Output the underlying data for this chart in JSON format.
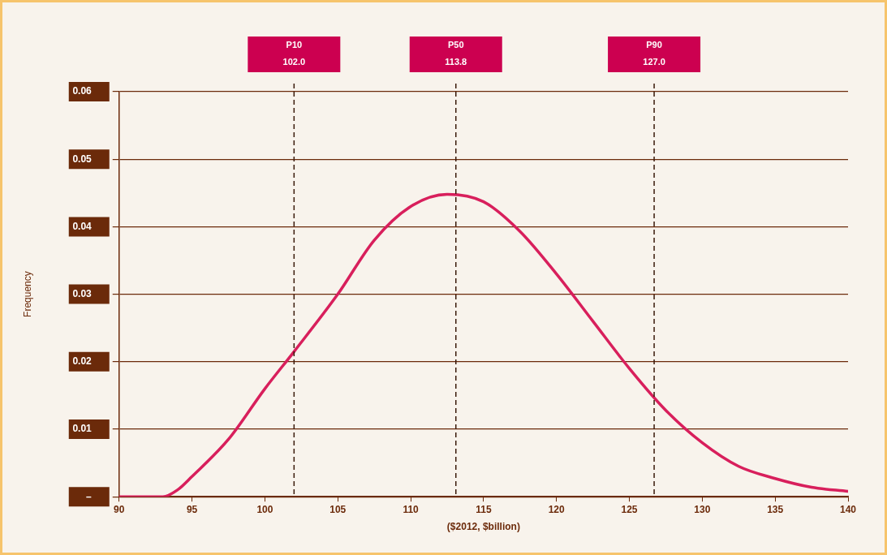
{
  "chart_data": {
    "type": "line",
    "xlabel": "($2012, $billion)",
    "ylabel": "Frequency",
    "x": [
      90,
      92,
      93,
      94,
      95,
      97.5,
      100,
      102,
      105,
      107.5,
      110,
      112.5,
      115,
      117.5,
      120,
      122.5,
      125,
      127.5,
      130,
      132.5,
      135,
      137.5,
      140
    ],
    "series": [
      {
        "color": "#d81f5c",
        "values": [
          0,
          0,
          0,
          0.001,
          0.003,
          0.0085,
          0.016,
          0.0215,
          0.03,
          0.038,
          0.043,
          0.0448,
          0.0437,
          0.0393,
          0.033,
          0.026,
          0.019,
          0.0128,
          0.008,
          0.0045,
          0.0027,
          0.0014,
          0.0008
        ]
      }
    ],
    "xlim": [
      90,
      140
    ],
    "xticks": [
      90,
      95,
      100,
      105,
      110,
      115,
      120,
      125,
      130,
      135,
      140
    ],
    "ylim": [
      0,
      0.06
    ],
    "yticks": [
      {
        "value": 0,
        "label": "–"
      },
      0.01,
      0.02,
      0.03,
      0.04,
      0.05,
      0.06
    ],
    "ref_lines": [
      {
        "axis": "x",
        "value": 102,
        "label": "P10\n102.0",
        "color": "#3a1a0a",
        "line_style": "dashed"
      },
      {
        "axis": "x",
        "value": 113.1,
        "label": "P50\n113.8",
        "color": "#3a1a0a",
        "line_style": "dashed"
      },
      {
        "axis": "x",
        "value": 126.7,
        "label": "P90\n127.0",
        "color": "#3a1a0a",
        "line_style": "dashed"
      }
    ],
    "grid": "y",
    "legend": false,
    "marker": "none",
    "line_style": "solid"
  }
}
